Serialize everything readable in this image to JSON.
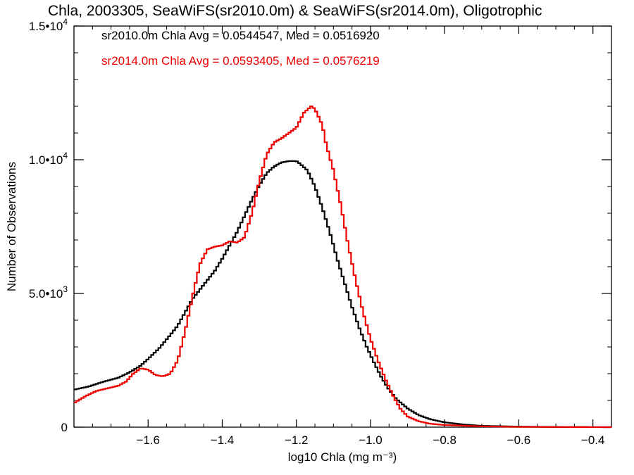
{
  "chart_data": {
    "type": "line",
    "title": "Chla, 2003305, SeaWiFS(sr2010.0m) & SeaWiFS(sr2014.0m), Oligotrophic",
    "xlabel": "log10 Chla (mg m⁻³)",
    "ylabel": "Number of Observations",
    "xlim": [
      -1.8,
      -0.35
    ],
    "ylim": [
      0,
      15000
    ],
    "x_ticks": [
      {
        "value": -1.6,
        "label": "−1.6"
      },
      {
        "value": -1.4,
        "label": "−1.4"
      },
      {
        "value": -1.2,
        "label": "−1.2"
      },
      {
        "value": -1.0,
        "label": "−1.0"
      },
      {
        "value": -0.8,
        "label": "−0.8"
      },
      {
        "value": -0.6,
        "label": "−0.6"
      },
      {
        "value": -0.4,
        "label": "−0.4"
      }
    ],
    "y_ticks": [
      {
        "value": 0,
        "mantissa": "0",
        "exp": ""
      },
      {
        "value": 5000,
        "mantissa": "5.0•10",
        "exp": "3"
      },
      {
        "value": 10000,
        "mantissa": "1.0•10",
        "exp": "4"
      },
      {
        "value": 15000,
        "mantissa": "1.5•10",
        "exp": "4"
      }
    ],
    "annotations": [
      {
        "text": "sr2010.0m Chla Avg = 0.0544547, Med = 0.0516920",
        "color": "#000000"
      },
      {
        "text": "sr2014.0m Chla Avg = 0.0593405, Med = 0.0576219",
        "color": "#ee0000"
      }
    ],
    "series": [
      {
        "color": "#000000",
        "points": [
          [
            -1.8,
            1400
          ],
          [
            -1.76,
            1520
          ],
          [
            -1.72,
            1700
          ],
          [
            -1.68,
            1850
          ],
          [
            -1.65,
            2050
          ],
          [
            -1.62,
            2300
          ],
          [
            -1.6,
            2550
          ],
          [
            -1.57,
            2950
          ],
          [
            -1.54,
            3450
          ],
          [
            -1.52,
            3800
          ],
          [
            -1.5,
            4300
          ],
          [
            -1.48,
            4800
          ],
          [
            -1.46,
            5150
          ],
          [
            -1.44,
            5500
          ],
          [
            -1.42,
            5850
          ],
          [
            -1.4,
            6300
          ],
          [
            -1.38,
            6800
          ],
          [
            -1.36,
            7300
          ],
          [
            -1.34,
            7900
          ],
          [
            -1.32,
            8500
          ],
          [
            -1.3,
            9050
          ],
          [
            -1.28,
            9500
          ],
          [
            -1.26,
            9750
          ],
          [
            -1.24,
            9900
          ],
          [
            -1.22,
            9950
          ],
          [
            -1.2,
            9950
          ],
          [
            -1.19,
            9850
          ],
          [
            -1.17,
            9600
          ],
          [
            -1.15,
            9000
          ],
          [
            -1.13,
            8200
          ],
          [
            -1.11,
            7300
          ],
          [
            -1.09,
            6300
          ],
          [
            -1.07,
            5400
          ],
          [
            -1.05,
            4500
          ],
          [
            -1.03,
            3700
          ],
          [
            -1.01,
            3000
          ],
          [
            -0.99,
            2400
          ],
          [
            -0.97,
            1850
          ],
          [
            -0.95,
            1400
          ],
          [
            -0.93,
            1050
          ],
          [
            -0.9,
            700
          ],
          [
            -0.87,
            450
          ],
          [
            -0.84,
            300
          ],
          [
            -0.8,
            180
          ],
          [
            -0.75,
            100
          ],
          [
            -0.7,
            50
          ],
          [
            -0.6,
            20
          ],
          [
            -0.5,
            5
          ],
          [
            -0.35,
            0
          ]
        ]
      },
      {
        "color": "#ee0000",
        "points": [
          [
            -1.8,
            900
          ],
          [
            -1.77,
            1150
          ],
          [
            -1.74,
            1350
          ],
          [
            -1.71,
            1450
          ],
          [
            -1.68,
            1550
          ],
          [
            -1.66,
            1700
          ],
          [
            -1.64,
            2000
          ],
          [
            -1.62,
            2200
          ],
          [
            -1.6,
            2150
          ],
          [
            -1.58,
            1950
          ],
          [
            -1.56,
            1900
          ],
          [
            -1.54,
            2000
          ],
          [
            -1.52,
            2500
          ],
          [
            -1.5,
            3600
          ],
          [
            -1.48,
            4900
          ],
          [
            -1.46,
            6100
          ],
          [
            -1.44,
            6650
          ],
          [
            -1.42,
            6750
          ],
          [
            -1.4,
            6800
          ],
          [
            -1.38,
            6950
          ],
          [
            -1.36,
            6900
          ],
          [
            -1.34,
            7100
          ],
          [
            -1.32,
            8000
          ],
          [
            -1.3,
            9200
          ],
          [
            -1.28,
            10200
          ],
          [
            -1.26,
            10650
          ],
          [
            -1.24,
            10800
          ],
          [
            -1.22,
            11000
          ],
          [
            -1.2,
            11200
          ],
          [
            -1.18,
            11750
          ],
          [
            -1.16,
            12000
          ],
          [
            -1.15,
            11900
          ],
          [
            -1.13,
            11300
          ],
          [
            -1.12,
            10600
          ],
          [
            -1.1,
            9600
          ],
          [
            -1.08,
            8300
          ],
          [
            -1.06,
            6800
          ],
          [
            -1.04,
            5500
          ],
          [
            -1.02,
            4300
          ],
          [
            -1.0,
            3300
          ],
          [
            -0.98,
            2500
          ],
          [
            -0.96,
            1800
          ],
          [
            -0.94,
            1200
          ],
          [
            -0.92,
            700
          ],
          [
            -0.9,
            400
          ],
          [
            -0.87,
            220
          ],
          [
            -0.84,
            130
          ],
          [
            -0.8,
            80
          ],
          [
            -0.7,
            30
          ],
          [
            -0.6,
            10
          ],
          [
            -0.35,
            0
          ]
        ]
      }
    ]
  }
}
